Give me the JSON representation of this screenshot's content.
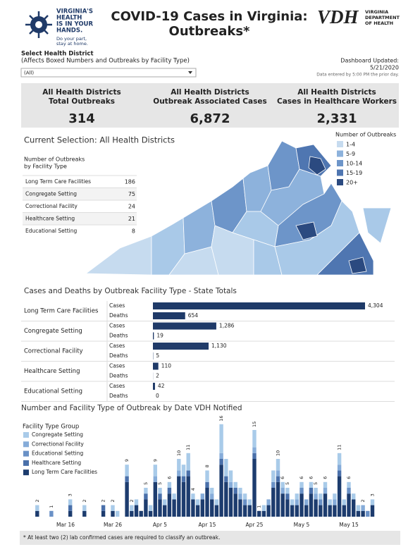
{
  "header": {
    "logo_lines": [
      "VIRGINIA'S",
      "HEALTH",
      "IS IN YOUR",
      "HANDS."
    ],
    "logo_tagline": [
      "Do your part,",
      "stay at home."
    ],
    "title_lines": [
      "COVID-19 Cases in Virginia:",
      "Outbreaks*"
    ],
    "agency_mark": "VDH",
    "agency_lines": [
      "VIRGINIA",
      "DEPARTMENT",
      "OF HEALTH"
    ]
  },
  "filter": {
    "label": "Select Health District",
    "note": "(Affects Boxed Numbers and Outbreaks by Facility Type)",
    "selected": "(All)"
  },
  "updated": {
    "label": "Dashboard Updated:",
    "date": "5/21/2020",
    "note": "Data entered by 5:00 PM the prior day."
  },
  "kpis": [
    {
      "label_lines": [
        "All Health Districts",
        "Total Outbreaks"
      ],
      "value": "314"
    },
    {
      "label_lines": [
        "All Health Districts",
        "Outbreak Associated Cases"
      ],
      "value": "6,872"
    },
    {
      "label_lines": [
        "All Health Districts",
        "Cases in Healthcare Workers"
      ],
      "value": "2,331"
    }
  ],
  "map": {
    "title": "Current Selection: All Health Districts",
    "legend_title": "Number of Outbreaks",
    "legend": [
      {
        "label": "1-4",
        "color": "#c6dbef"
      },
      {
        "label": "5-9",
        "color": "#8db2dc"
      },
      {
        "label": "10-14",
        "color": "#6d95c9"
      },
      {
        "label": "15-19",
        "color": "#4f76b1"
      },
      {
        "label": "20+",
        "color": "#2b4a80"
      }
    ]
  },
  "facility_table": {
    "title_lines": [
      "Number of Outbreaks",
      "by Facility Type"
    ],
    "rows": [
      [
        "Long Term Care Facilities",
        186
      ],
      [
        "Congregate Setting",
        75
      ],
      [
        "Correctional Facility",
        24
      ],
      [
        "Healthcare Setting",
        21
      ],
      [
        "Educational Setting",
        8
      ]
    ]
  },
  "chart_data": [
    {
      "type": "hbar",
      "title": "Cases and Deaths by Outbreak Facility Type - State Totals",
      "categories": [
        "Long Term Care Facilities",
        "Congregate Setting",
        "Correctional Facility",
        "Healthcare Setting",
        "Educational Setting"
      ],
      "series": [
        {
          "name": "Cases",
          "color": "#1f3a68",
          "values": [
            4304,
            1286,
            1130,
            110,
            42
          ],
          "value_labels": [
            "4,304",
            "1,286",
            "1,130",
            "110",
            "42"
          ]
        },
        {
          "name": "Deaths",
          "color": "#1f3a68",
          "values": [
            654,
            19,
            5,
            2,
            0
          ]
        }
      ]
    },
    {
      "type": "stacked_bar",
      "title": "Number and Facility Type of Outbreak by Date VDH Notified",
      "legend_title": "Facility Type Group",
      "categories": [
        null,
        null,
        null,
        null,
        null,
        null,
        "Mar 16",
        null,
        null,
        null,
        null,
        null,
        null,
        null,
        null,
        null,
        "Mar 26",
        null,
        null,
        null,
        null,
        null,
        null,
        null,
        null,
        null,
        "Apr 5",
        null,
        null,
        null,
        null,
        null,
        null,
        null,
        null,
        null,
        "Apr 15",
        null,
        null,
        null,
        null,
        null,
        null,
        null,
        null,
        null,
        "Apr 25",
        null,
        null,
        null,
        null,
        null,
        null,
        null,
        null,
        null,
        "May 5",
        null,
        null,
        null,
        null,
        null,
        null,
        null,
        null,
        null,
        "May 15",
        null,
        null,
        null,
        null,
        null
      ],
      "series": [
        {
          "name": "Congregate Setting",
          "color": "#a9cbe9",
          "values": [
            1,
            0,
            0,
            0,
            0,
            0,
            0,
            1,
            0,
            0,
            1,
            0,
            0,
            0,
            0,
            0,
            1,
            1,
            0,
            2,
            1,
            1,
            0,
            1,
            1,
            2,
            1,
            1,
            1,
            1,
            2,
            2,
            3,
            1,
            1,
            0,
            2,
            1,
            1,
            5,
            3,
            2,
            1,
            1,
            1,
            1,
            3,
            0,
            1,
            0,
            2,
            2,
            1,
            1,
            1,
            1,
            1,
            0,
            1,
            1,
            1,
            1,
            1,
            1,
            2,
            1,
            1,
            1,
            1,
            0,
            0,
            1
          ]
        },
        {
          "name": "Correctional Facility",
          "color": "#86acd9",
          "values": [
            0,
            0,
            0,
            0,
            0,
            0,
            0,
            0,
            0,
            0,
            0,
            0,
            0,
            0,
            0,
            0,
            0,
            0,
            0,
            0,
            0,
            0,
            0,
            0,
            0,
            1,
            0,
            0,
            0,
            0,
            1,
            0,
            0,
            0,
            0,
            1,
            0,
            1,
            0,
            1,
            0,
            1,
            0,
            1,
            0,
            0,
            1,
            0,
            0,
            1,
            0,
            1,
            1,
            0,
            0,
            1,
            0,
            1,
            0,
            1,
            0,
            1,
            0,
            1,
            1,
            0,
            0,
            0,
            0,
            1,
            0,
            0
          ]
        },
        {
          "name": "Educational Setting",
          "color": "#6a91c6",
          "values": [
            0,
            0,
            0,
            1,
            0,
            0,
            0,
            0,
            0,
            0,
            0,
            0,
            0,
            0,
            0,
            0,
            0,
            0,
            0,
            0,
            0,
            0,
            0,
            0,
            0,
            0,
            0,
            0,
            0,
            0,
            0,
            0,
            0,
            0,
            0,
            0,
            0,
            0,
            0,
            0,
            0,
            0,
            0,
            0,
            1,
            0,
            0,
            0,
            0,
            0,
            1,
            0,
            0,
            0,
            0,
            0,
            1,
            0,
            0,
            0,
            1,
            0,
            0,
            0,
            0,
            0,
            1,
            0,
            0,
            0,
            1,
            0
          ]
        },
        {
          "name": "Healthcare Setting",
          "color": "#4a70aa",
          "values": [
            0,
            0,
            0,
            0,
            0,
            0,
            0,
            1,
            0,
            0,
            0,
            0,
            0,
            0,
            1,
            0,
            0,
            0,
            0,
            1,
            0,
            0,
            0,
            1,
            0,
            0,
            1,
            0,
            1,
            0,
            0,
            1,
            1,
            0,
            0,
            0,
            1,
            0,
            0,
            1,
            1,
            0,
            1,
            0,
            0,
            0,
            1,
            0,
            0,
            0,
            0,
            1,
            0,
            1,
            0,
            0,
            0,
            0,
            1,
            0,
            0,
            0,
            0,
            0,
            1,
            0,
            0,
            0,
            0,
            0,
            0,
            0
          ]
        },
        {
          "name": "Long Term Care Facilities",
          "color": "#1d3c6e",
          "values": [
            1,
            0,
            0,
            0,
            0,
            0,
            0,
            1,
            0,
            0,
            1,
            0,
            0,
            0,
            1,
            0,
            1,
            0,
            0,
            6,
            1,
            2,
            1,
            3,
            1,
            6,
            3,
            2,
            4,
            3,
            7,
            6,
            7,
            3,
            2,
            3,
            5,
            3,
            2,
            9,
            6,
            5,
            4,
            3,
            2,
            2,
            10,
            1,
            1,
            2,
            5,
            6,
            4,
            3,
            2,
            2,
            4,
            2,
            4,
            3,
            2,
            4,
            2,
            2,
            7,
            2,
            4,
            3,
            1,
            1,
            0,
            2
          ]
        }
      ],
      "totals": [
        2,
        null,
        null,
        1,
        null,
        null,
        null,
        3,
        null,
        null,
        2,
        null,
        null,
        null,
        2,
        null,
        2,
        null,
        null,
        9,
        2,
        null,
        null,
        5,
        null,
        9,
        5,
        null,
        6,
        null,
        10,
        null,
        11,
        4,
        null,
        null,
        8,
        null,
        null,
        16,
        null,
        null,
        null,
        null,
        null,
        null,
        15,
        1,
        null,
        null,
        null,
        10,
        6,
        5,
        null,
        null,
        6,
        null,
        6,
        5,
        null,
        6,
        null,
        null,
        11,
        null,
        6,
        null,
        null,
        2,
        null,
        3
      ]
    }
  ],
  "footnote": "* At least two (2) lab confirmed cases are required to classify an outbreak."
}
